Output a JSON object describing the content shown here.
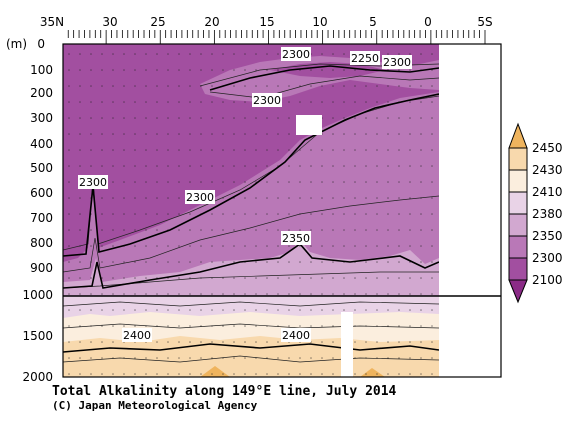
{
  "colors": {
    "band_2100_2300": "#a24fa0",
    "band_2300_2350": "#b978b7",
    "band_2350_2380": "#d2a8d0",
    "band_2380_2410": "#e9d3e7",
    "band_2410_2430": "#fbeede",
    "band_2430_2450": "#f8d9ad",
    "band_2450_up": "#efb45e",
    "no_data": "#ffffff"
  },
  "chart_data": {
    "type": "heatmap",
    "title": "Total Alkalinity along 149°E line, July 2014",
    "credit": "(C) Japan Meteorological Agency",
    "x_axis": {
      "unit_label": "",
      "ticks": [
        "35N",
        "30",
        "25",
        "20",
        "15",
        "10",
        "5",
        "0",
        "5S"
      ],
      "range": [
        "35N",
        "5S"
      ]
    },
    "y_axis": {
      "unit_label": "(m)",
      "ticks": [
        "0",
        "100",
        "200",
        "300",
        "400",
        "500",
        "600",
        "700",
        "800",
        "900",
        "1000",
        "1500",
        "2000"
      ],
      "upper_panel_range": [
        0,
        1000
      ],
      "lower_panel_range": [
        1000,
        2000
      ]
    },
    "legend": {
      "placement": "right",
      "levels": [
        "2450",
        "2430",
        "2410",
        "2380",
        "2350",
        "2300",
        "2100"
      ]
    },
    "contour_labels": [
      "2300",
      "2250",
      "2300",
      "2300",
      "2300",
      "2300",
      "2350",
      "2400",
      "2400"
    ]
  }
}
